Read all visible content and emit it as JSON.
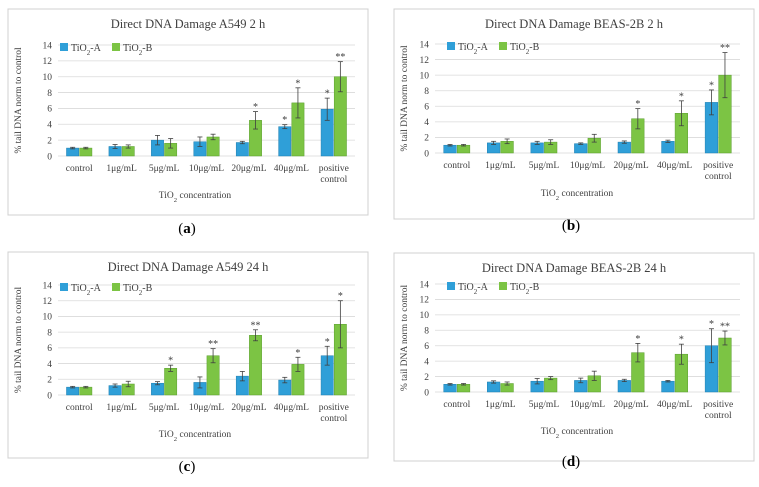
{
  "colors": {
    "series_a": "#2f9fd8",
    "series_b": "#7cc444"
  },
  "chart_data": [
    {
      "id": "a",
      "type": "bar",
      "title": "Direct DNA Damage A549 2 h",
      "ylabel": "% tail DNA norm to control",
      "xlabel": "TiO2 concentration",
      "caption": "(a)",
      "ylim": [
        0,
        14
      ],
      "yticks": [
        0,
        2,
        4,
        6,
        8,
        10,
        12,
        14
      ],
      "categories": [
        [
          "control"
        ],
        [
          "1μg/mL"
        ],
        [
          "5μg/mL"
        ],
        [
          "10μg/mL"
        ],
        [
          "20μg/mL"
        ],
        [
          "40μg/mL"
        ],
        [
          "positive",
          "control"
        ]
      ],
      "series": [
        {
          "name": "TiO2-A",
          "values": [
            1.0,
            1.2,
            2.0,
            1.8,
            1.7,
            3.7,
            5.9
          ],
          "errors": [
            0.1,
            0.25,
            0.6,
            0.6,
            0.15,
            0.25,
            1.4
          ],
          "marks": [
            "",
            "",
            "",
            "",
            "",
            "*",
            "*"
          ]
        },
        {
          "name": "TiO2-B",
          "values": [
            1.0,
            1.2,
            1.6,
            2.4,
            4.5,
            6.7,
            10.0
          ],
          "errors": [
            0.1,
            0.2,
            0.6,
            0.35,
            1.1,
            1.9,
            1.9
          ],
          "marks": [
            "",
            "",
            "",
            "",
            "*",
            "*",
            "**"
          ]
        }
      ]
    },
    {
      "id": "b",
      "type": "bar",
      "title": "Direct DNA Damage BEAS-2B 2 h",
      "ylabel": "% tail DNA norm to control",
      "xlabel": "TiO2 concentration",
      "caption": "(b)",
      "ylim": [
        0,
        14
      ],
      "yticks": [
        0,
        2,
        4,
        6,
        8,
        10,
        12,
        14
      ],
      "categories": [
        [
          "control"
        ],
        [
          "1μg/mL"
        ],
        [
          "5μg/mL"
        ],
        [
          "10μg/mL"
        ],
        [
          "20μg/mL"
        ],
        [
          "40μg/mL"
        ],
        [
          "positive",
          "control"
        ]
      ],
      "series": [
        {
          "name": "TiO2-A",
          "values": [
            1.0,
            1.3,
            1.3,
            1.2,
            1.4,
            1.5,
            6.5
          ],
          "errors": [
            0.1,
            0.2,
            0.2,
            0.1,
            0.15,
            0.15,
            1.6
          ],
          "marks": [
            "",
            "",
            "",
            "",
            "",
            "",
            "*"
          ]
        },
        {
          "name": "TiO2-B",
          "values": [
            1.0,
            1.5,
            1.4,
            1.9,
            4.4,
            5.1,
            10.0
          ],
          "errors": [
            0.1,
            0.3,
            0.3,
            0.5,
            1.3,
            1.6,
            2.9
          ],
          "marks": [
            "",
            "",
            "",
            "",
            "*",
            "*",
            "**"
          ]
        }
      ]
    },
    {
      "id": "c",
      "type": "bar",
      "title": "Direct DNA Damage A549 24 h",
      "ylabel": "% tail DNA norm to control",
      "xlabel": "TiO2 concentration",
      "caption": "(c)",
      "ylim": [
        0,
        14
      ],
      "yticks": [
        0,
        2,
        4,
        6,
        8,
        10,
        12,
        14
      ],
      "categories": [
        [
          "control"
        ],
        [
          "1μg/mL"
        ],
        [
          "5μg/mL"
        ],
        [
          "10μg/mL"
        ],
        [
          "20μg/mL"
        ],
        [
          "40μg/mL"
        ],
        [
          "positive",
          "control"
        ]
      ],
      "series": [
        {
          "name": "TiO2-A",
          "values": [
            1.0,
            1.2,
            1.5,
            1.6,
            2.4,
            1.9,
            5.0
          ],
          "errors": [
            0.1,
            0.2,
            0.2,
            0.7,
            0.6,
            0.35,
            1.2
          ],
          "marks": [
            "",
            "",
            "",
            "",
            "",
            "",
            "*"
          ]
        },
        {
          "name": "TiO2-B",
          "values": [
            1.0,
            1.4,
            3.4,
            5.0,
            7.6,
            3.9,
            9.0
          ],
          "errors": [
            0.1,
            0.35,
            0.4,
            0.9,
            0.7,
            0.9,
            3.0
          ],
          "marks": [
            "",
            "",
            "*",
            "**",
            "**",
            "*",
            "*"
          ]
        }
      ]
    },
    {
      "id": "d",
      "type": "bar",
      "title": "Direct DNA Damage BEAS-2B 24 h",
      "ylabel": "% tail DNA norm to control",
      "xlabel": "TiO2 concentration",
      "caption": "(d)",
      "ylim": [
        0,
        14
      ],
      "yticks": [
        0,
        2,
        4,
        6,
        8,
        10,
        12,
        14
      ],
      "categories": [
        [
          "control"
        ],
        [
          "1μg/mL"
        ],
        [
          "5μg/mL"
        ],
        [
          "10μg/mL"
        ],
        [
          "20μg/mL"
        ],
        [
          "40μg/mL"
        ],
        [
          "positive",
          "control"
        ]
      ],
      "series": [
        {
          "name": "TiO2-A",
          "values": [
            1.0,
            1.3,
            1.4,
            1.5,
            1.5,
            1.4,
            6.0
          ],
          "errors": [
            0.1,
            0.15,
            0.35,
            0.3,
            0.15,
            0.1,
            2.2
          ],
          "marks": [
            "",
            "",
            "",
            "",
            "",
            "",
            "*"
          ]
        },
        {
          "name": "TiO2-B",
          "values": [
            1.0,
            1.1,
            1.8,
            2.1,
            5.1,
            4.9,
            7.0
          ],
          "errors": [
            0.1,
            0.2,
            0.2,
            0.6,
            1.2,
            1.3,
            0.9
          ],
          "marks": [
            "",
            "",
            "",
            "",
            "*",
            "*",
            "**"
          ]
        }
      ]
    }
  ]
}
